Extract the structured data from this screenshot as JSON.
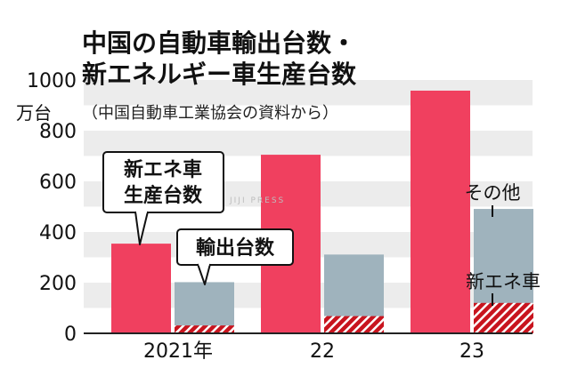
{
  "chart_data": {
    "type": "bar",
    "title_line1": "中国の自動車輸出台数・",
    "title_line2": "新エネルギー車生産台数",
    "source_note": "（中国自動車工業協会の資料から）",
    "y_unit": "万台",
    "ylim": [
      0,
      1000
    ],
    "y_ticks": [
      "0",
      "200",
      "400",
      "600",
      "800",
      "1000"
    ],
    "categories": [
      "2021年",
      "22",
      "23"
    ],
    "series": [
      {
        "name": "新エネ車生産台数",
        "values": [
          354,
          705,
          958
        ],
        "color": "#f0405f"
      },
      {
        "name": "輸出台数",
        "values": [
          202,
          311,
          491
        ],
        "color": "#9fb3bd",
        "breakdown_name": "新エネ車",
        "breakdown_values": [
          31,
          68,
          120
        ],
        "breakdown_color": "#c8141e"
      }
    ],
    "callouts": {
      "nev_production": "新エネ車\n生産台数",
      "exports": "輸出台数"
    },
    "right_labels": {
      "other": "その他",
      "nev": "新エネ車"
    },
    "grid": "alternating horizontal bands",
    "watermark": "JIJI PRESS"
  }
}
